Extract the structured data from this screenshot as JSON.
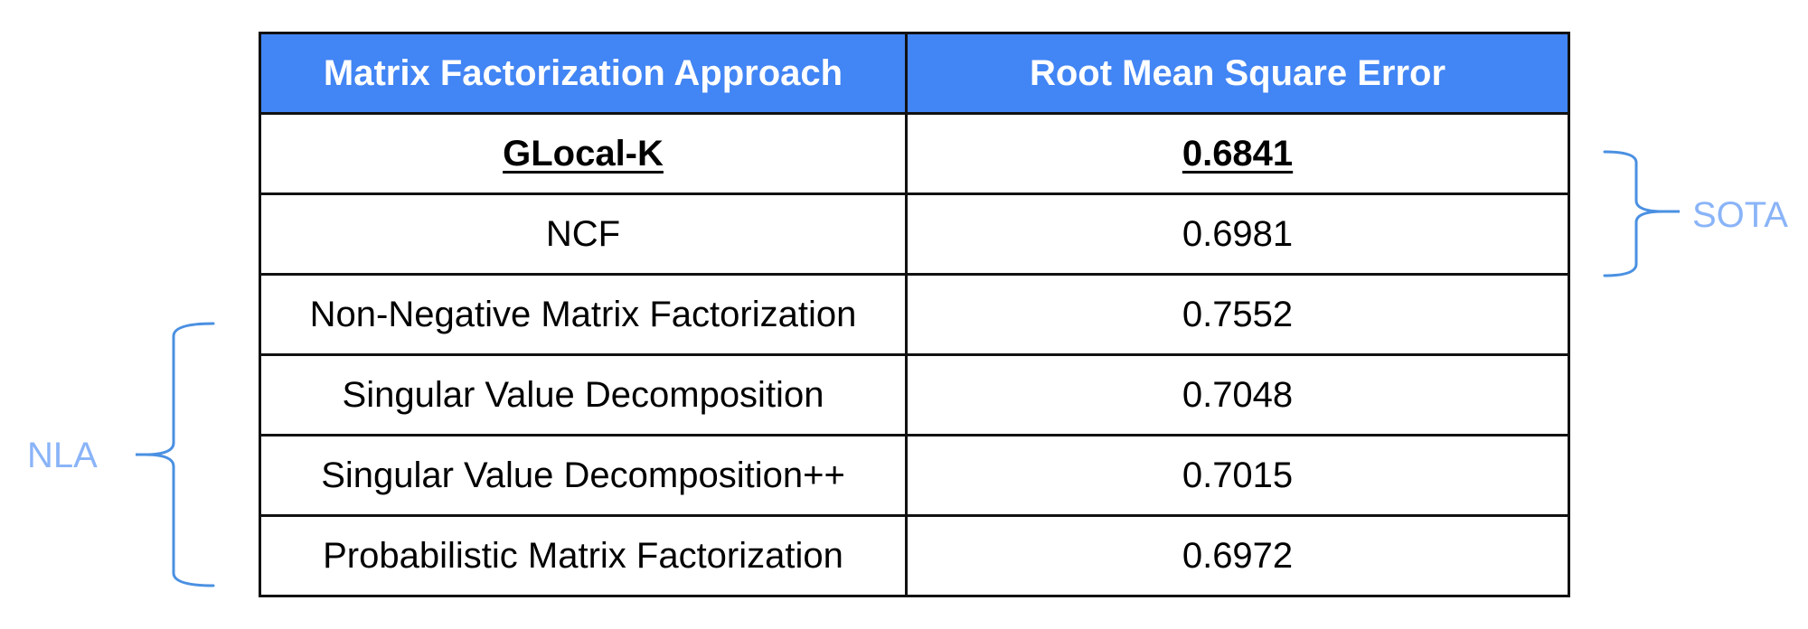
{
  "chart_data": {
    "type": "table",
    "columns": [
      "Matrix Factorization Approach",
      "Root Mean Square Error"
    ],
    "rows": [
      {
        "approach": "GLocal-K",
        "rmse": "0.6841",
        "highlight": true
      },
      {
        "approach": "NCF",
        "rmse": "0.6981",
        "highlight": false
      },
      {
        "approach": "Non-Negative Matrix Factorization",
        "rmse": "0.7552",
        "highlight": false
      },
      {
        "approach": "Singular Value Decomposition",
        "rmse": "0.7048",
        "highlight": false
      },
      {
        "approach": "Singular Value Decomposition++",
        "rmse": "0.7015",
        "highlight": false
      },
      {
        "approach": "Probabilistic Matrix Factorization",
        "rmse": "0.6972",
        "highlight": false
      }
    ],
    "groups": [
      {
        "label": "SOTA",
        "rows": [
          "GLocal-K",
          "NCF"
        ],
        "side": "right"
      },
      {
        "label": "NLA",
        "rows": [
          "Non-Negative Matrix Factorization",
          "Singular Value Decomposition",
          "Singular Value Decomposition++",
          "Probabilistic Matrix Factorization"
        ],
        "side": "left"
      }
    ]
  },
  "colors": {
    "header_bg": "#4285f4",
    "header_text": "#ffffff",
    "bracket": "#4a90e2",
    "bracket_label": "#8ab4f8"
  }
}
